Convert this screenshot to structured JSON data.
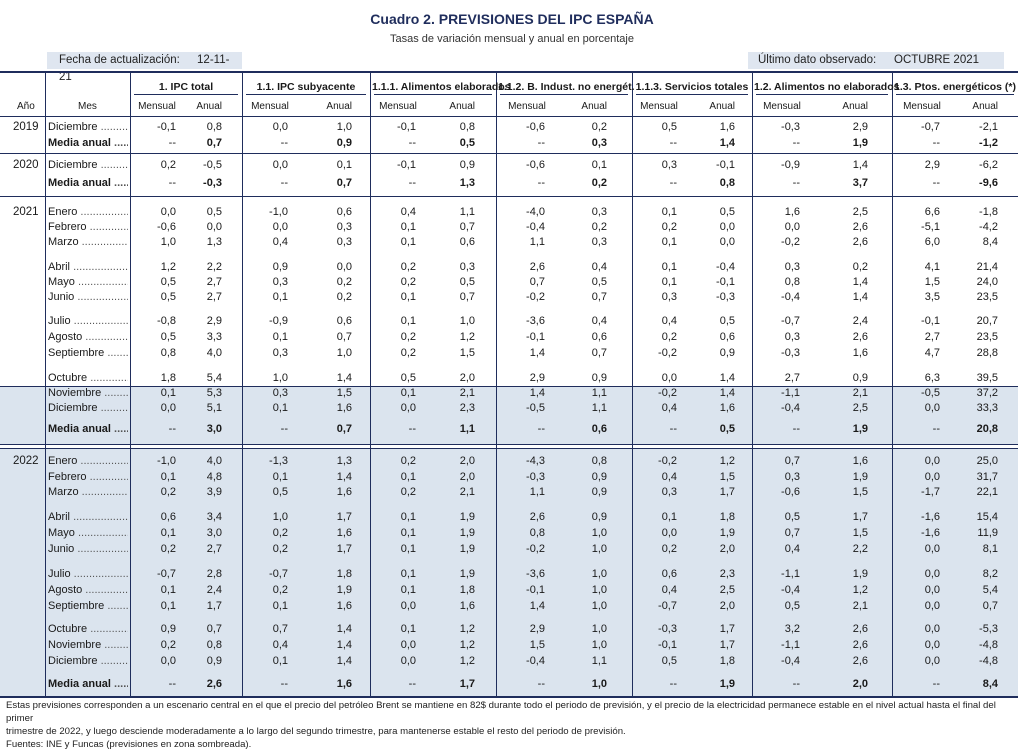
{
  "title": "Cuadro 2. PREVISIONES DEL IPC ESPAÑA",
  "subtitle": "Tasas de variación mensual y anual en porcentaje",
  "fecha_label": "Fecha de actualización:",
  "fecha_value": "12-11-21",
  "ultimo_label": "Último dato observado:",
  "ultimo_value": "OCTUBRE 2021",
  "headers": {
    "ano": "Año",
    "mes": "Mes",
    "groups": [
      "1. IPC total",
      "1.1. IPC subyacente",
      "1.1.1. Alimentos elaborados",
      "1.1.2. B. Indust. no energét.",
      "1.1.3. Servicios totales",
      "1.2. Alimentos no elaborados",
      "1.3. Ptos. energéticos (*)"
    ],
    "mensual": "Mensual",
    "anual": "Anual"
  },
  "rows": [
    {
      "y": "2019",
      "m": "Diciembre",
      "v": [
        "-0,1",
        "0,8",
        "0,0",
        "1,0",
        "-0,1",
        "0,8",
        "-0,6",
        "0,2",
        "0,5",
        "1,6",
        "-0,3",
        "2,9",
        "-0,7",
        "-2,1"
      ]
    },
    {
      "m": "Media anual",
      "bold": true,
      "v": [
        "--",
        "0,7",
        "--",
        "0,9",
        "--",
        "0,5",
        "--",
        "0,3",
        "--",
        "1,4",
        "--",
        "1,9",
        "--",
        "-1,2"
      ]
    },
    {
      "y": "2020",
      "m": "Diciembre",
      "v": [
        "0,2",
        "-0,5",
        "0,0",
        "0,1",
        "-0,1",
        "0,9",
        "-0,6",
        "0,1",
        "0,3",
        "-0,1",
        "-0,9",
        "1,4",
        "2,9",
        "-6,2"
      ]
    },
    {
      "m": "Media anual",
      "bold": true,
      "v": [
        "--",
        "-0,3",
        "--",
        "0,7",
        "--",
        "1,3",
        "--",
        "0,2",
        "--",
        "0,8",
        "--",
        "3,7",
        "--",
        "-9,6"
      ]
    },
    {
      "y": "2021",
      "m": "Enero",
      "v": [
        "0,0",
        "0,5",
        "-1,0",
        "0,6",
        "0,4",
        "1,1",
        "-4,0",
        "0,3",
        "0,1",
        "0,5",
        "1,6",
        "2,5",
        "6,6",
        "-1,8"
      ]
    },
    {
      "m": "Febrero",
      "v": [
        "-0,6",
        "0,0",
        "0,0",
        "0,3",
        "0,1",
        "0,7",
        "-0,4",
        "0,2",
        "0,2",
        "0,0",
        "0,0",
        "2,6",
        "-5,1",
        "-4,2"
      ]
    },
    {
      "m": "Marzo",
      "v": [
        "1,0",
        "1,3",
        "0,4",
        "0,3",
        "0,1",
        "0,6",
        "1,1",
        "0,3",
        "0,1",
        "0,0",
        "-0,2",
        "2,6",
        "6,0",
        "8,4"
      ]
    },
    {
      "m": "Abril",
      "v": [
        "1,2",
        "2,2",
        "0,9",
        "0,0",
        "0,2",
        "0,3",
        "2,6",
        "0,4",
        "0,1",
        "-0,4",
        "0,3",
        "0,2",
        "4,1",
        "21,4"
      ]
    },
    {
      "m": "Mayo",
      "v": [
        "0,5",
        "2,7",
        "0,3",
        "0,2",
        "0,2",
        "0,5",
        "0,7",
        "0,5",
        "0,1",
        "-0,1",
        "0,8",
        "1,4",
        "1,5",
        "24,0"
      ]
    },
    {
      "m": "Junio",
      "v": [
        "0,5",
        "2,7",
        "0,1",
        "0,2",
        "0,1",
        "0,7",
        "-0,2",
        "0,7",
        "0,3",
        "-0,3",
        "-0,4",
        "1,4",
        "3,5",
        "23,5"
      ]
    },
    {
      "m": "Julio",
      "v": [
        "-0,8",
        "2,9",
        "-0,9",
        "0,6",
        "0,1",
        "1,0",
        "-3,6",
        "0,4",
        "0,4",
        "0,5",
        "-0,7",
        "2,4",
        "-0,1",
        "20,7"
      ]
    },
    {
      "m": "Agosto",
      "v": [
        "0,5",
        "3,3",
        "0,1",
        "0,7",
        "0,2",
        "1,2",
        "-0,1",
        "0,6",
        "0,2",
        "0,6",
        "0,3",
        "2,6",
        "2,7",
        "23,5"
      ]
    },
    {
      "m": "Septiembre",
      "v": [
        "0,8",
        "4,0",
        "0,3",
        "1,0",
        "0,2",
        "1,5",
        "1,4",
        "0,7",
        "-0,2",
        "0,9",
        "-0,3",
        "1,6",
        "4,7",
        "28,8"
      ]
    },
    {
      "m": "Octubre",
      "v": [
        "1,8",
        "5,4",
        "1,0",
        "1,4",
        "0,5",
        "2,0",
        "2,9",
        "0,9",
        "0,0",
        "1,4",
        "2,7",
        "0,9",
        "6,3",
        "39,5"
      ]
    },
    {
      "m": "Noviembre",
      "v": [
        "0,1",
        "5,3",
        "0,3",
        "1,5",
        "0,1",
        "2,1",
        "1,4",
        "1,1",
        "-0,2",
        "1,4",
        "-1,1",
        "2,1",
        "-0,5",
        "37,2"
      ]
    },
    {
      "m": "Diciembre",
      "v": [
        "0,0",
        "5,1",
        "0,1",
        "1,6",
        "0,0",
        "2,3",
        "-0,5",
        "1,1",
        "0,4",
        "1,6",
        "-0,4",
        "2,5",
        "0,0",
        "33,3"
      ]
    },
    {
      "m": "Media anual",
      "bold": true,
      "v": [
        "--",
        "3,0",
        "--",
        "0,7",
        "--",
        "1,1",
        "--",
        "0,6",
        "--",
        "0,5",
        "--",
        "1,9",
        "--",
        "20,8"
      ]
    },
    {
      "y": "2022",
      "m": "Enero",
      "v": [
        "-1,0",
        "4,0",
        "-1,3",
        "1,3",
        "0,2",
        "2,0",
        "-4,3",
        "0,8",
        "-0,2",
        "1,2",
        "0,7",
        "1,6",
        "0,0",
        "25,0"
      ]
    },
    {
      "m": "Febrero",
      "v": [
        "0,1",
        "4,8",
        "0,1",
        "1,4",
        "0,1",
        "2,0",
        "-0,3",
        "0,9",
        "0,4",
        "1,5",
        "0,3",
        "1,9",
        "0,0",
        "31,7"
      ]
    },
    {
      "m": "Marzo",
      "v": [
        "0,2",
        "3,9",
        "0,5",
        "1,6",
        "0,2",
        "2,1",
        "1,1",
        "0,9",
        "0,3",
        "1,7",
        "-0,6",
        "1,5",
        "-1,7",
        "22,1"
      ]
    },
    {
      "m": "Abril",
      "v": [
        "0,6",
        "3,4",
        "1,0",
        "1,7",
        "0,1",
        "1,9",
        "2,6",
        "0,9",
        "0,1",
        "1,8",
        "0,5",
        "1,7",
        "-1,6",
        "15,4"
      ]
    },
    {
      "m": "Mayo",
      "v": [
        "0,1",
        "3,0",
        "0,2",
        "1,6",
        "0,1",
        "1,9",
        "0,8",
        "1,0",
        "0,0",
        "1,9",
        "0,7",
        "1,5",
        "-1,6",
        "11,9"
      ]
    },
    {
      "m": "Junio",
      "v": [
        "0,2",
        "2,7",
        "0,2",
        "1,7",
        "0,1",
        "1,9",
        "-0,2",
        "1,0",
        "0,2",
        "2,0",
        "0,4",
        "2,2",
        "0,0",
        "8,1"
      ]
    },
    {
      "m": "Julio",
      "v": [
        "-0,7",
        "2,8",
        "-0,7",
        "1,8",
        "0,1",
        "1,9",
        "-3,6",
        "1,0",
        "0,6",
        "2,3",
        "-1,1",
        "1,9",
        "0,0",
        "8,2"
      ]
    },
    {
      "m": "Agosto",
      "v": [
        "0,1",
        "2,4",
        "0,2",
        "1,9",
        "0,1",
        "1,8",
        "-0,1",
        "1,0",
        "0,4",
        "2,5",
        "-0,4",
        "1,2",
        "0,0",
        "5,4"
      ]
    },
    {
      "m": "Septiembre",
      "v": [
        "0,1",
        "1,7",
        "0,1",
        "1,6",
        "0,0",
        "1,6",
        "1,4",
        "1,0",
        "-0,7",
        "2,0",
        "0,5",
        "2,1",
        "0,0",
        "0,7"
      ]
    },
    {
      "m": "Octubre",
      "v": [
        "0,9",
        "0,7",
        "0,7",
        "1,4",
        "0,1",
        "1,2",
        "2,9",
        "1,0",
        "-0,3",
        "1,7",
        "3,2",
        "2,6",
        "0,0",
        "-5,3"
      ]
    },
    {
      "m": "Noviembre",
      "v": [
        "0,2",
        "0,8",
        "0,4",
        "1,4",
        "0,0",
        "1,2",
        "1,5",
        "1,0",
        "-0,1",
        "1,7",
        "-1,1",
        "2,6",
        "0,0",
        "-4,8"
      ]
    },
    {
      "m": "Diciembre",
      "v": [
        "0,0",
        "0,9",
        "0,1",
        "1,4",
        "0,0",
        "1,2",
        "-0,4",
        "1,1",
        "0,5",
        "1,8",
        "-0,4",
        "2,6",
        "0,0",
        "-4,8"
      ]
    },
    {
      "m": "Media anual",
      "bold": true,
      "v": [
        "--",
        "2,6",
        "--",
        "1,6",
        "--",
        "1,7",
        "--",
        "1,0",
        "--",
        "1,9",
        "--",
        "2,0",
        "--",
        "8,4"
      ]
    }
  ],
  "notes": [
    "Estas previsiones corresponden a un escenario central en el que el precio del petróleo Brent se mantiene en 82$ durante todo el periodo de previsión, y el precio de la electricidad permanece estable en el nivel actual hasta el final del primer",
    "trimestre de 2022, y luego desciende moderadamente a lo largo del segundo trimestre, para mantenerse estable el resto del periodo de previsión.",
    "Fuentes: INE y Funcas (previsiones en zona sombreada)."
  ]
}
